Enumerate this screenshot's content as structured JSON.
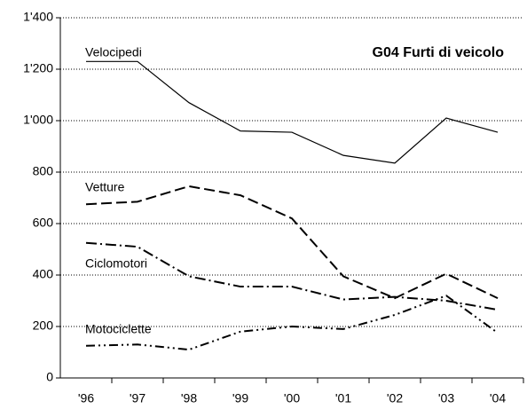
{
  "chart_data": {
    "type": "line",
    "title": "G04   Furti di veicolo",
    "categories": [
      "'96",
      "'97",
      "'98",
      "'99",
      "'00",
      "'01",
      "'02",
      "'03",
      "'04"
    ],
    "series": [
      {
        "name": "Velocipedi",
        "color": "#000000",
        "dash": "solid",
        "values": [
          1230,
          1230,
          1070,
          960,
          955,
          865,
          835,
          1010,
          955
        ]
      },
      {
        "name": "Vetture",
        "color": "#000000",
        "dash": "dashed",
        "values": [
          675,
          685,
          745,
          710,
          620,
          395,
          310,
          405,
          310
        ]
      },
      {
        "name": "Ciclomotori",
        "color": "#000000",
        "dash": "dashdot",
        "values": [
          525,
          510,
          395,
          355,
          355,
          305,
          315,
          300,
          265
        ]
      },
      {
        "name": "Motociclette",
        "color": "#000000",
        "dash": "dashdotdot",
        "values": [
          125,
          130,
          110,
          180,
          200,
          190,
          245,
          320,
          175
        ]
      }
    ],
    "ylim": [
      0,
      1400
    ],
    "yticks": [
      0,
      200,
      400,
      600,
      800,
      {
        "value": 1000,
        "label": "1'000"
      },
      {
        "value": 1200,
        "label": "1'200"
      },
      {
        "value": 1400,
        "label": "1'400"
      }
    ],
    "grid": true
  }
}
